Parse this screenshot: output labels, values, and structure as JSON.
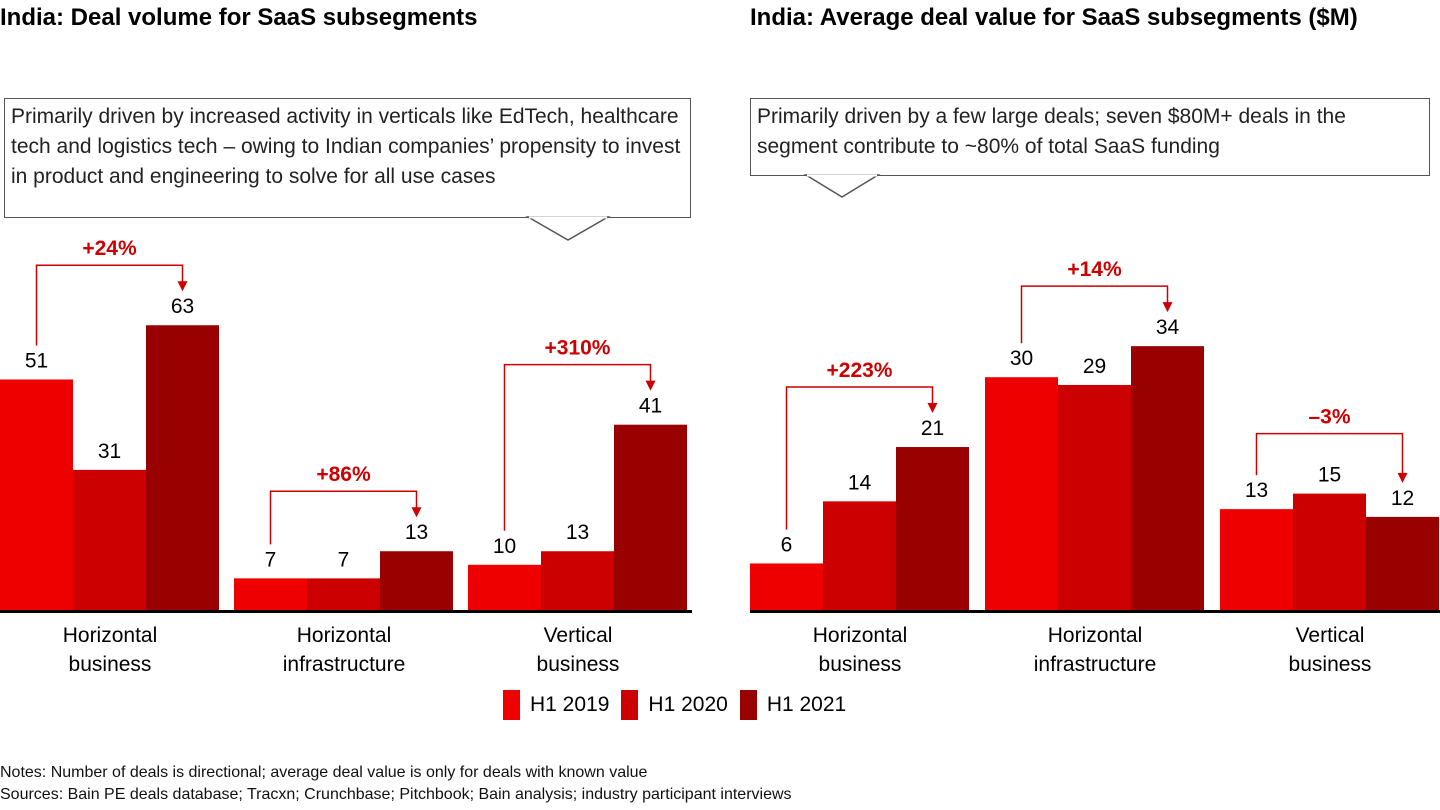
{
  "colors": {
    "h1_2019": "#ee0000",
    "h1_2020": "#cc0000",
    "h1_2021": "#990000",
    "annotation": "#cc0000",
    "axis": "#000000"
  },
  "legend": [
    {
      "label": "H1 2019",
      "color": "#ee0000"
    },
    {
      "label": "H1 2020",
      "color": "#cc0000"
    },
    {
      "label": "H1 2021",
      "color": "#990000"
    }
  ],
  "notes": "Notes: Number of deals is directional; average deal value is only for deals with known value",
  "sources": "Sources: Bain PE deals database; Tracxn; Crunchbase; Pitchbook; Bain analysis; industry participant interviews",
  "chart_data": [
    {
      "type": "bar",
      "title": "India: Deal volume for SaaS subsegments",
      "callout": "Primarily driven by increased activity in verticals like EdTech, healthcare tech and logistics tech – owing to Indian companies’ propensity to invest in product and engineering to solve for all use cases",
      "categories": [
        "Horizontal business",
        "Horizontal infrastructure",
        "Vertical business"
      ],
      "category_lines": [
        [
          "Horizontal",
          "business"
        ],
        [
          "Horizontal",
          "infrastructure"
        ],
        [
          "Vertical",
          "business"
        ]
      ],
      "series": [
        {
          "name": "H1 2019",
          "values": [
            51,
            7,
            10
          ]
        },
        {
          "name": "H1 2020",
          "values": [
            31,
            7,
            13
          ]
        },
        {
          "name": "H1 2021",
          "values": [
            63,
            13,
            41
          ]
        }
      ],
      "growth_annotations": [
        "+24%",
        "+86%",
        "+310%"
      ],
      "xlabel": "",
      "ylabel": "",
      "ylim": [
        0,
        63
      ],
      "grid": false
    },
    {
      "type": "bar",
      "title": "India: Average deal value for SaaS subsegments ($M)",
      "callout": "Primarily driven by a few large deals; seven $80M+ deals in the segment contribute to ~80% of total SaaS funding",
      "categories": [
        "Horizontal business",
        "Horizontal infrastructure",
        "Vertical business"
      ],
      "category_lines": [
        [
          "Horizontal",
          "business"
        ],
        [
          "Horizontal",
          "infrastructure"
        ],
        [
          "Vertical",
          "business"
        ]
      ],
      "series": [
        {
          "name": "H1 2019",
          "values": [
            6,
            30,
            13
          ]
        },
        {
          "name": "H1 2020",
          "values": [
            14,
            29,
            15
          ]
        },
        {
          "name": "H1 2021",
          "values": [
            21,
            34,
            12
          ]
        }
      ],
      "growth_annotations": [
        "+223%",
        "+14%",
        "–3%"
      ],
      "xlabel": "",
      "ylabel": "",
      "ylim": [
        0,
        34
      ],
      "grid": false
    }
  ]
}
